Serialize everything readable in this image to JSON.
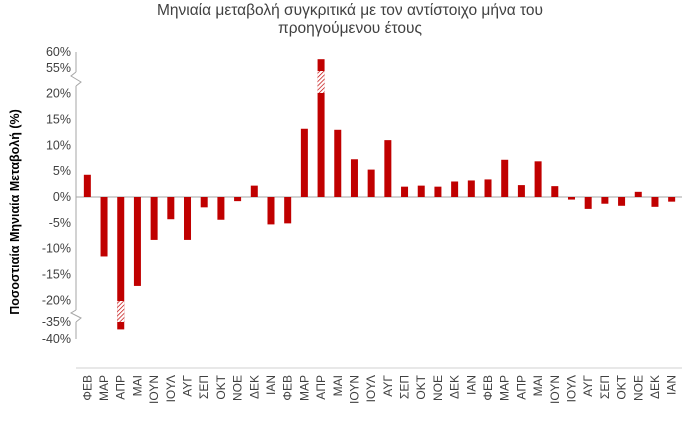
{
  "chart_data": {
    "type": "bar",
    "title": [
      "Μηνιαία μεταβολή συγκριτικά με τον αντίστοιχο μήνα του",
      "προηγούμενου έτους"
    ],
    "ylabel": "Ποσοστιαία Μηνιαία Μεταβολή (%)",
    "xlabel": "",
    "categories": [
      "ΦΕΒ",
      "ΜΑΡ",
      "ΑΠΡ",
      "ΜΑΙ",
      "ΙΟΥΝ",
      "ΙΟΥΛ",
      "ΑΥΓ",
      "ΣΕΠ",
      "ΟΚΤ",
      "ΝΟΕ",
      "ΔΕΚ",
      "ΙΑΝ",
      "ΦΕΒ",
      "ΜΑΡ",
      "ΑΠΡ",
      "ΜΑΙ",
      "ΙΟΥΝ",
      "ΙΟΥΛ",
      "ΑΥΓ",
      "ΣΕΠ",
      "ΟΚΤ",
      "ΝΟΕ",
      "ΔΕΚ",
      "ΙΑΝ",
      "ΦΕΒ",
      "ΜΑΡ",
      "ΑΠΡ",
      "ΜΑΙ",
      "ΙΟΥΝ",
      "ΙΟΥΛ",
      "ΑΥΓ",
      "ΣΕΠ",
      "ΟΚΤ",
      "ΝΟΕ",
      "ΔΕΚ",
      "ΙΑΝ"
    ],
    "values": [
      4.3,
      -11.5,
      -37.5,
      -17.2,
      -8.3,
      -4.3,
      -8.3,
      -2.0,
      -4.4,
      -0.8,
      2.2,
      -5.3,
      -5.1,
      13.2,
      59.0,
      13.0,
      7.3,
      5.3,
      11.0,
      2.0,
      2.2,
      2.0,
      3.0,
      3.2,
      3.4,
      7.2,
      2.3,
      6.9,
      2.1,
      -0.5,
      -2.3,
      -1.3,
      -1.7,
      1.0,
      -1.9,
      -0.9
    ],
    "yticks": [
      "60%",
      "55%",
      "20%",
      "15%",
      "10%",
      "5%",
      "0%",
      "-5%",
      "-10%",
      "-15%",
      "-20%",
      "-35%",
      "-40%"
    ],
    "axis_break": {
      "upper": {
        "from": 20,
        "to": 55
      },
      "lower": {
        "from": -20,
        "to": -35
      }
    },
    "ylim": [
      -40,
      60
    ],
    "grid": false,
    "legend": "none",
    "color": "#c00000"
  }
}
